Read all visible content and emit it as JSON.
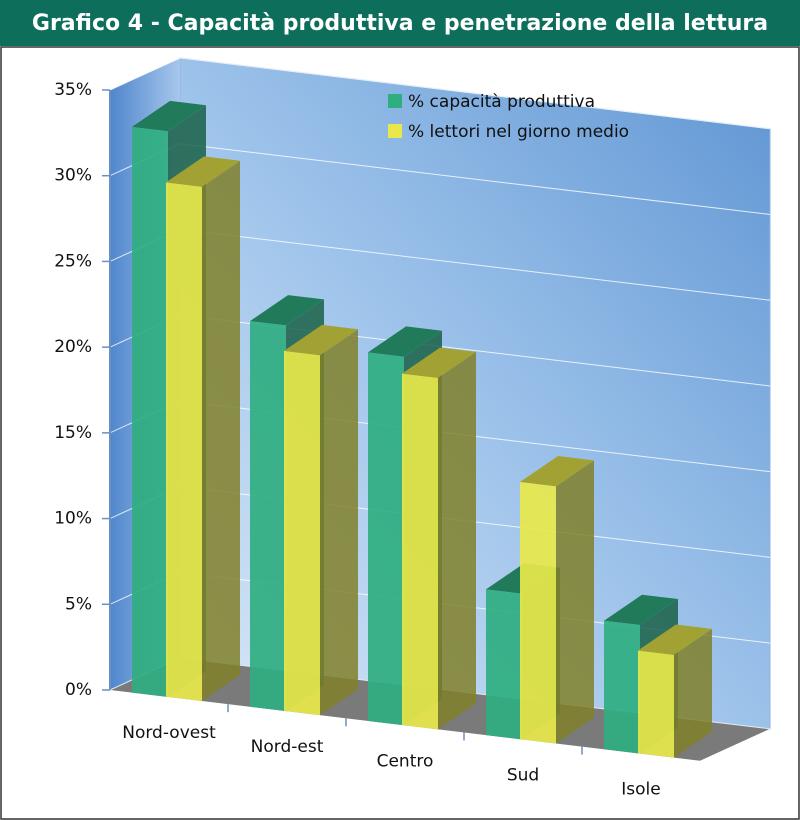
{
  "chart_data": {
    "type": "bar3d",
    "title": "Grafico 4 -  Capacità produttiva e penetrazione della lettura",
    "categories": [
      "Nord-ovest",
      "Nord-est",
      "Centro",
      "Sud",
      "Isole"
    ],
    "series": [
      {
        "name": "% capacità produttiva",
        "color": "#2fae80",
        "values": [
          33,
          22.5,
          21.5,
          8.5,
          7.5
        ]
      },
      {
        "name": "% lettori nel giorno medio",
        "color": "#e8e84a",
        "values": [
          30,
          21,
          20.5,
          15,
          6
        ]
      }
    ],
    "ylim": [
      0,
      35
    ],
    "yticks": [
      {
        "value": 0,
        "label": "0%"
      },
      {
        "value": 5,
        "label": "5%"
      },
      {
        "value": 10,
        "label": "10%"
      },
      {
        "value": 15,
        "label": "15%"
      },
      {
        "value": 20,
        "label": "20%"
      },
      {
        "value": 25,
        "label": "25%"
      },
      {
        "value": 30,
        "label": "30%"
      },
      {
        "value": 35,
        "label": "35%"
      }
    ],
    "grid": true
  }
}
